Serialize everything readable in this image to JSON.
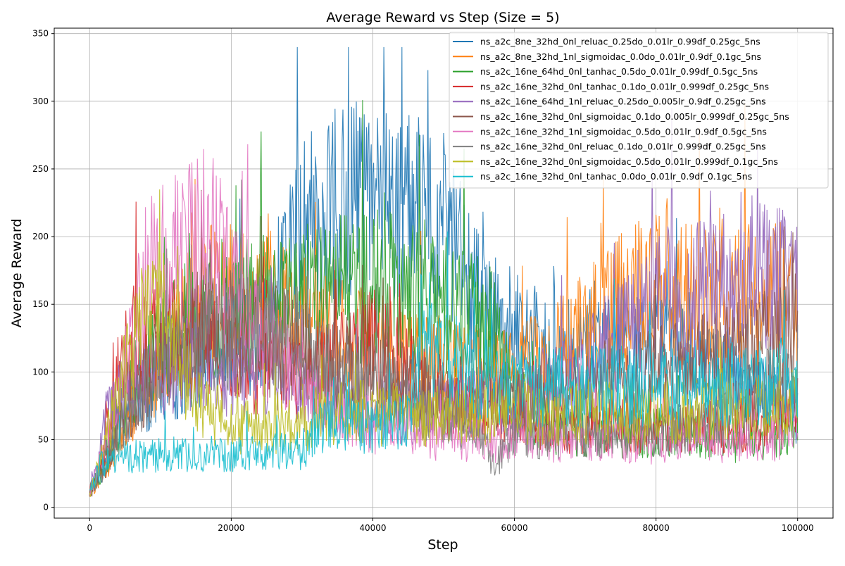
{
  "chart_data": {
    "type": "line",
    "title": "Average Reward vs Step (Size = 5)",
    "xlabel": "Step",
    "ylabel": "Average Reward",
    "xlim": [
      -5000,
      105000
    ],
    "ylim": [
      -8,
      354
    ],
    "xticks": [
      0,
      20000,
      40000,
      60000,
      80000,
      100000
    ],
    "xtick_labels": [
      "0",
      "20000",
      "40000",
      "60000",
      "80000",
      "100000"
    ],
    "yticks": [
      0,
      50,
      100,
      150,
      200,
      250,
      300,
      350
    ],
    "ytick_labels": [
      "0",
      "50",
      "100",
      "150",
      "200",
      "250",
      "300",
      "350"
    ],
    "grid": true,
    "legend_position": "top-right",
    "series": [
      {
        "name": "ns_a2c_8ne_32hd_0nl_reluac_0.25do_0.01lr_0.99df_0.25gc_5ns",
        "color": "#1f77b4",
        "x": [
          0,
          2000,
          5000,
          10000,
          15000,
          20000,
          25000,
          29000,
          32000,
          34000,
          38000,
          42000,
          46000,
          50000,
          55000,
          60000,
          65000,
          70000,
          75000,
          80000,
          85000,
          90000,
          95000,
          100000
        ],
        "y": [
          12,
          30,
          70,
          90,
          110,
          120,
          130,
          200,
          215,
          220,
          225,
          222,
          215,
          205,
          150,
          130,
          120,
          125,
          125,
          120,
          110,
          95,
          85,
          70
        ]
      },
      {
        "name": "ns_a2c_8ne_32hd_1nl_sigmoidac_0.0do_0.01lr_0.9df_0.1gc_5ns",
        "color": "#ff7f0e",
        "x": [
          0,
          2000,
          5000,
          10000,
          15000,
          20000,
          25000,
          30000,
          35000,
          40000,
          45000,
          50000,
          55000,
          60000,
          65000,
          70000,
          75000,
          78000,
          80000,
          85000,
          90000,
          95000,
          100000
        ],
        "y": [
          10,
          25,
          60,
          110,
          150,
          160,
          155,
          140,
          130,
          120,
          110,
          105,
          100,
          100,
          110,
          130,
          150,
          170,
          165,
          160,
          165,
          160,
          155
        ]
      },
      {
        "name": "ns_a2c_16ne_64hd_0nl_tanhac_0.5do_0.01lr_0.99df_0.5gc_5ns",
        "color": "#2ca02c",
        "x": [
          0,
          2000,
          5000,
          10000,
          15000,
          20000,
          25000,
          30000,
          35000,
          40000,
          45000,
          50000,
          55000,
          57000,
          60000,
          65000,
          70000,
          75000,
          80000,
          85000,
          90000,
          95000,
          100000
        ],
        "y": [
          10,
          30,
          80,
          120,
          140,
          150,
          150,
          155,
          160,
          165,
          160,
          150,
          140,
          130,
          80,
          60,
          55,
          55,
          55,
          55,
          50,
          50,
          60
        ]
      },
      {
        "name": "ns_a2c_16ne_32hd_0nl_tanhac_0.1do_0.01lr_0.999df_0.25gc_5ns",
        "color": "#d62728",
        "x": [
          0,
          2000,
          5000,
          10000,
          15000,
          20000,
          25000,
          30000,
          35000,
          40000,
          45000,
          50000,
          55000,
          60000,
          65000,
          70000,
          75000,
          80000,
          85000,
          90000,
          95000,
          100000
        ],
        "y": [
          10,
          40,
          120,
          130,
          120,
          110,
          100,
          95,
          110,
          120,
          100,
          80,
          70,
          65,
          60,
          60,
          60,
          60,
          58,
          60,
          65,
          75
        ]
      },
      {
        "name": "ns_a2c_16ne_64hd_1nl_reluac_0.25do_0.005lr_0.9df_0.25gc_5ns",
        "color": "#9467bd",
        "x": [
          0,
          2000,
          5000,
          10000,
          15000,
          20000,
          25000,
          30000,
          35000,
          40000,
          45000,
          50000,
          55000,
          60000,
          65000,
          70000,
          75000,
          80000,
          85000,
          90000,
          95000,
          100000
        ],
        "y": [
          10,
          60,
          90,
          100,
          105,
          100,
          95,
          85,
          75,
          70,
          70,
          75,
          80,
          85,
          90,
          100,
          130,
          155,
          160,
          165,
          170,
          160
        ]
      },
      {
        "name": "ns_a2c_16ne_32hd_0nl_sigmoidac_0.1do_0.005lr_0.999df_0.25gc_5ns",
        "color": "#8c564b",
        "x": [
          0,
          2000,
          5000,
          10000,
          15000,
          20000,
          25000,
          30000,
          35000,
          40000,
          45000,
          50000,
          55000,
          60000,
          65000,
          70000,
          75000,
          80000,
          85000,
          90000,
          95000,
          100000
        ],
        "y": [
          10,
          30,
          70,
          110,
          130,
          130,
          125,
          115,
          100,
          95,
          90,
          85,
          80,
          80,
          85,
          90,
          95,
          100,
          105,
          110,
          120,
          140
        ]
      },
      {
        "name": "ns_a2c_16ne_32hd_1nl_sigmoidac_0.5do_0.01lr_0.9df_0.5gc_5ns",
        "color": "#e377c2",
        "x": [
          0,
          2000,
          5000,
          8000,
          10000,
          13000,
          17000,
          20000,
          25000,
          30000,
          35000,
          40000,
          45000,
          50000,
          55000,
          60000,
          65000,
          70000,
          75000,
          80000,
          85000,
          90000,
          95000,
          100000
        ],
        "y": [
          10,
          40,
          100,
          170,
          180,
          190,
          200,
          170,
          120,
          90,
          70,
          60,
          55,
          50,
          50,
          50,
          50,
          50,
          50,
          48,
          50,
          50,
          50,
          55
        ]
      },
      {
        "name": "ns_a2c_16ne_32hd_0nl_reluac_0.1do_0.01lr_0.999df_0.25gc_5ns",
        "color": "#7f7f7f",
        "x": [
          0,
          2000,
          5000,
          10000,
          15000,
          20000,
          25000,
          30000,
          35000,
          40000,
          45000,
          50000,
          55000,
          57000,
          60000,
          65000,
          70000,
          75000,
          80000,
          85000,
          90000,
          95000,
          100000
        ],
        "y": [
          12,
          30,
          70,
          100,
          120,
          130,
          130,
          120,
          100,
          90,
          80,
          70,
          60,
          30,
          55,
          55,
          55,
          55,
          55,
          60,
          70,
          85,
          100
        ]
      },
      {
        "name": "ns_a2c_16ne_32hd_0nl_sigmoidac_0.5do_0.01lr_0.999df_0.1gc_5ns",
        "color": "#bcbd22",
        "x": [
          0,
          2000,
          4000,
          7000,
          10000,
          12000,
          15000,
          20000,
          25000,
          30000,
          33000,
          35000,
          40000,
          45000,
          48000,
          51000,
          55000,
          60000,
          65000,
          70000,
          75000,
          80000,
          85000,
          90000,
          95000,
          100000
        ],
        "y": [
          10,
          40,
          90,
          130,
          150,
          120,
          80,
          60,
          60,
          60,
          65,
          70,
          70,
          65,
          65,
          70,
          70,
          70,
          70,
          70,
          70,
          70,
          70,
          72,
          75,
          80
        ]
      },
      {
        "name": "ns_a2c_16ne_32hd_0nl_tanhac_0.0do_0.01lr_0.9df_0.1gc_5ns",
        "color": "#17becf",
        "x": [
          0,
          2000,
          5000,
          10000,
          15000,
          20000,
          25000,
          30000,
          33000,
          35000,
          40000,
          45000,
          47000,
          50000,
          55000,
          60000,
          65000,
          70000,
          75000,
          80000,
          85000,
          90000,
          95000,
          100000
        ],
        "y": [
          12,
          35,
          38,
          38,
          40,
          40,
          40,
          42,
          60,
          60,
          60,
          65,
          140,
          110,
          95,
          90,
          88,
          90,
          90,
          88,
          88,
          90,
          92,
          95
        ]
      }
    ]
  }
}
